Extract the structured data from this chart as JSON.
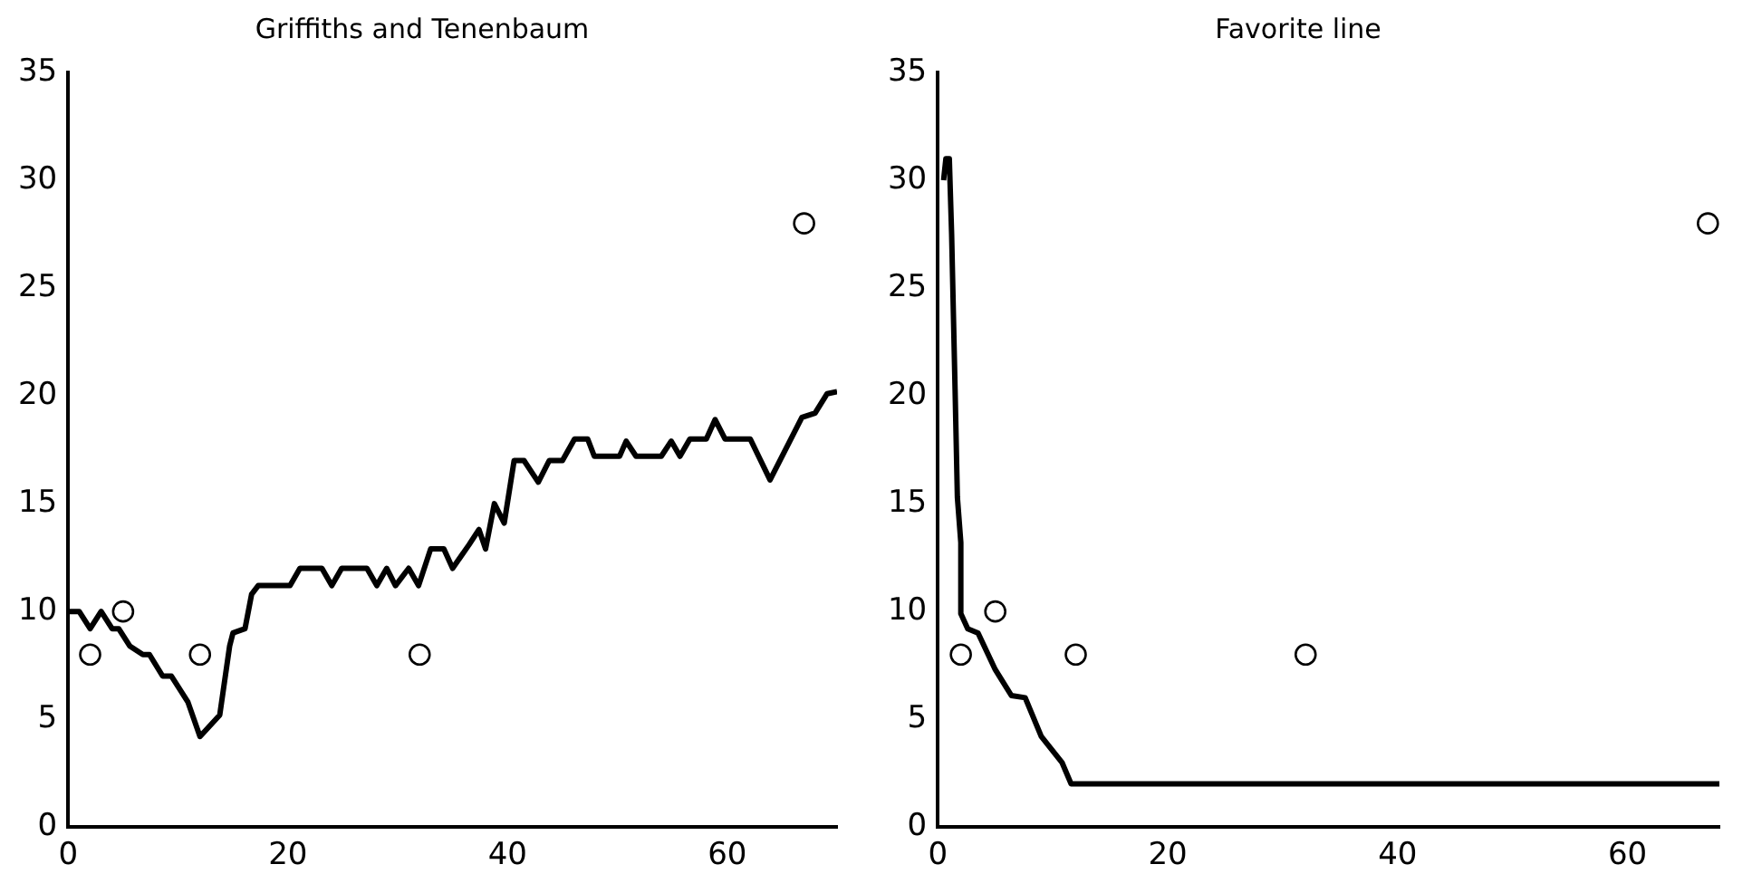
{
  "chart_data": [
    {
      "type": "line",
      "title": "Griffiths and Tenenbaum",
      "xlim": [
        0,
        70
      ],
      "xticks": [
        0,
        20,
        40,
        60
      ],
      "ylim": [
        0,
        35
      ],
      "yticks": [
        0,
        5,
        10,
        15,
        20,
        25,
        30,
        35
      ],
      "legend": false,
      "series": [
        {
          "type": "line",
          "color": "#000000",
          "line_style": "solid",
          "marker": "none",
          "x": [
            0,
            1,
            2,
            3,
            4,
            4.6,
            5.6,
            6.8,
            7.4,
            8.6,
            9.4,
            10.9,
            12,
            13.8,
            14.7,
            15,
            16.1,
            16.7,
            17.3,
            20.2,
            21.1,
            23.1,
            24,
            24.9,
            27.2,
            28.1,
            29,
            29.8,
            31,
            31.9,
            33,
            34.2,
            35,
            36.5,
            37.4,
            38,
            38.8,
            39.7,
            40.6,
            41.5,
            42.8,
            43.8,
            45,
            46.1,
            47.3,
            47.9,
            50.2,
            50.8,
            51.7,
            54,
            54.9,
            55.7,
            56.6,
            58.1,
            58.9,
            59.8,
            62.1,
            63.9,
            66.8,
            68,
            69.1,
            70
          ],
          "values": [
            10,
            10,
            9.2,
            10,
            9.2,
            9.2,
            8.4,
            8,
            8,
            7,
            7,
            5.8,
            4.2,
            5.2,
            8.4,
            9,
            9.2,
            10.8,
            11.2,
            11.2,
            12,
            12,
            11.2,
            12,
            12,
            11.2,
            12,
            11.2,
            12,
            11.2,
            12.9,
            12.9,
            12,
            13.1,
            13.8,
            12.9,
            15,
            14.1,
            17,
            17,
            16,
            17,
            17,
            18,
            18,
            17.2,
            17.2,
            17.9,
            17.2,
            17.2,
            17.9,
            17.2,
            18,
            18,
            18.9,
            18,
            18,
            16.1,
            19,
            19.2,
            20.1,
            20.2
          ]
        },
        {
          "type": "scatter",
          "color": "#000000",
          "marker": "circle",
          "x": [
            2,
            5,
            12,
            32,
            67
          ],
          "values": [
            8,
            10,
            8,
            8,
            28
          ]
        }
      ]
    },
    {
      "type": "line",
      "title": "Favorite line",
      "xlim": [
        0,
        68
      ],
      "xticks": [
        0,
        20,
        40,
        60
      ],
      "ylim": [
        0,
        35
      ],
      "yticks": [
        0,
        5,
        10,
        15,
        20,
        25,
        30,
        35
      ],
      "legend": false,
      "series": [
        {
          "type": "line",
          "color": "#000000",
          "line_style": "solid",
          "marker": "none",
          "x": [
            0.5,
            0.7,
            1,
            1.2,
            1.5,
            1.7,
            2,
            2,
            2.6,
            3.5,
            5,
            6.4,
            7.6,
            9,
            10.8,
            11.6,
            68
          ],
          "values": [
            30,
            31,
            31,
            27.5,
            20.3,
            15.3,
            13.2,
            9.9,
            9.2,
            9,
            7.3,
            6.1,
            6,
            4.2,
            3,
            2,
            2
          ]
        },
        {
          "type": "scatter",
          "color": "#000000",
          "marker": "circle",
          "x": [
            2,
            5,
            12,
            32,
            67
          ],
          "values": [
            8,
            10,
            8,
            8,
            28
          ]
        }
      ]
    }
  ]
}
